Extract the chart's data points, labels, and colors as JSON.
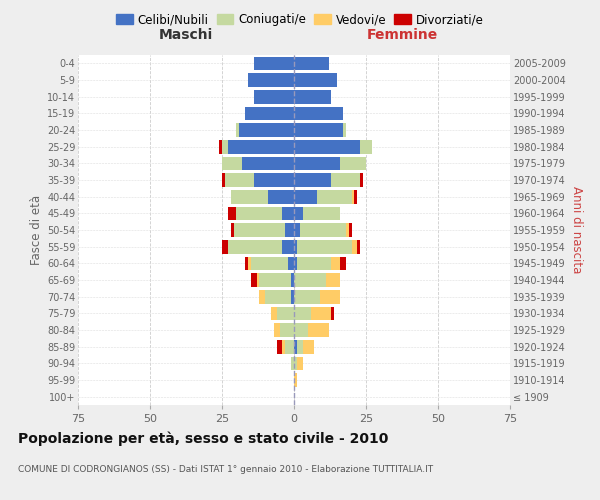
{
  "age_groups": [
    "100+",
    "95-99",
    "90-94",
    "85-89",
    "80-84",
    "75-79",
    "70-74",
    "65-69",
    "60-64",
    "55-59",
    "50-54",
    "45-49",
    "40-44",
    "35-39",
    "30-34",
    "25-29",
    "20-24",
    "15-19",
    "10-14",
    "5-9",
    "0-4"
  ],
  "birth_years": [
    "≤ 1909",
    "1910-1914",
    "1915-1919",
    "1920-1924",
    "1925-1929",
    "1930-1934",
    "1935-1939",
    "1940-1944",
    "1945-1949",
    "1950-1954",
    "1955-1959",
    "1960-1964",
    "1965-1969",
    "1970-1974",
    "1975-1979",
    "1980-1984",
    "1985-1989",
    "1990-1994",
    "1995-1999",
    "2000-2004",
    "2005-2009"
  ],
  "maschi": {
    "celibe": [
      0,
      0,
      0,
      0,
      0,
      0,
      1,
      1,
      2,
      4,
      3,
      4,
      9,
      14,
      18,
      23,
      19,
      17,
      14,
      16,
      14
    ],
    "coniugato": [
      0,
      0,
      1,
      3,
      5,
      6,
      9,
      11,
      13,
      19,
      18,
      16,
      13,
      10,
      7,
      2,
      1,
      0,
      0,
      0,
      0
    ],
    "vedovo": [
      0,
      0,
      0,
      1,
      2,
      2,
      2,
      1,
      1,
      0,
      0,
      0,
      0,
      0,
      0,
      0,
      0,
      0,
      0,
      0,
      0
    ],
    "divorziato": [
      0,
      0,
      0,
      2,
      0,
      0,
      0,
      2,
      1,
      2,
      1,
      3,
      0,
      1,
      0,
      1,
      0,
      0,
      0,
      0,
      0
    ]
  },
  "femmine": {
    "nubile": [
      0,
      0,
      0,
      1,
      0,
      0,
      0,
      0,
      1,
      1,
      2,
      3,
      8,
      13,
      16,
      23,
      17,
      17,
      13,
      15,
      12
    ],
    "coniugata": [
      0,
      0,
      1,
      2,
      5,
      6,
      9,
      11,
      12,
      19,
      16,
      13,
      12,
      10,
      9,
      4,
      1,
      0,
      0,
      0,
      0
    ],
    "vedova": [
      0,
      1,
      2,
      4,
      7,
      7,
      7,
      5,
      3,
      2,
      1,
      0,
      1,
      0,
      0,
      0,
      0,
      0,
      0,
      0,
      0
    ],
    "divorziata": [
      0,
      0,
      0,
      0,
      0,
      1,
      0,
      0,
      2,
      1,
      1,
      0,
      1,
      1,
      0,
      0,
      0,
      0,
      0,
      0,
      0
    ]
  },
  "colors": {
    "celibe": "#4472C4",
    "coniugato": "#C5D9A0",
    "vedovo": "#FFCC66",
    "divorziato": "#CC0000"
  },
  "xlim": 75,
  "title": "Popolazione per età, sesso e stato civile - 2010",
  "subtitle": "COMUNE DI CODRONGIANOS (SS) - Dati ISTAT 1° gennaio 2010 - Elaborazione TUTTITALIA.IT",
  "ylabel_left": "Fasce di età",
  "ylabel_right": "Anni di nascita",
  "xlabel_left": "Maschi",
  "xlabel_right": "Femmine",
  "legend_labels": [
    "Celibi/Nubili",
    "Coniugati/e",
    "Vedovi/e",
    "Divorziati/e"
  ],
  "bg_color": "#eeeeee",
  "plot_bg_color": "#ffffff"
}
